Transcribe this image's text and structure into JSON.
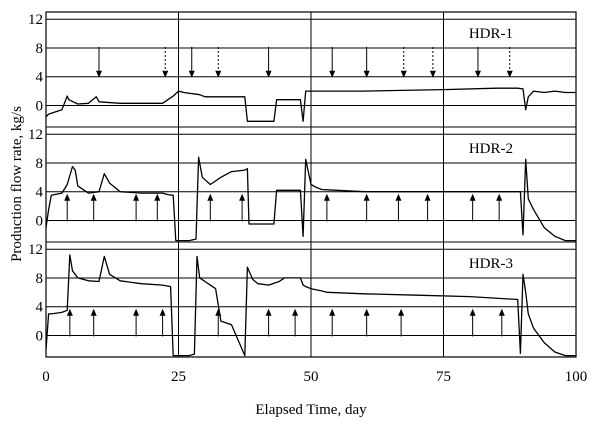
{
  "chart_data": {
    "type": "line",
    "xlabel": "Elapsed Time, day",
    "ylabel": "Production flow rate, kg/s",
    "xlim": [
      0,
      100
    ],
    "x_ticks": [
      "0",
      "25",
      "50",
      "75",
      "100"
    ],
    "x_tick_values": [
      0,
      25,
      50,
      75,
      100
    ],
    "grid": "on",
    "panels": [
      {
        "name": "HDR-1",
        "ylim": [
          -3,
          13
        ],
        "y_ticks": [
          "12",
          "8",
          "4",
          "0"
        ],
        "y_tick_values": [
          12,
          8,
          4,
          0
        ],
        "x": [
          0,
          0.5,
          3,
          4,
          4.3,
          6,
          8,
          9.5,
          10,
          14,
          22,
          23,
          24,
          25,
          26,
          29,
          30,
          33,
          36,
          37.5,
          38,
          38.5,
          40,
          42,
          43,
          43.5,
          44,
          46,
          48,
          48.5,
          49,
          60,
          75,
          85,
          89,
          90,
          90.5,
          91,
          92,
          94,
          96,
          98,
          100
        ],
        "y": [
          -1.6,
          -1.2,
          -0.6,
          1.3,
          0.8,
          0.2,
          0.3,
          1.2,
          0.5,
          0.3,
          0.3,
          0.8,
          1.3,
          2.0,
          1.8,
          1.5,
          1.2,
          1.2,
          1.2,
          1.2,
          -2.2,
          -2.2,
          -2.2,
          -2.2,
          -2.2,
          0.8,
          0.8,
          0.8,
          0.8,
          -2.2,
          2.0,
          2.0,
          2.2,
          2.4,
          2.4,
          2.3,
          -0.6,
          1.2,
          2.0,
          1.8,
          2.0,
          1.8,
          1.8
        ],
        "arrows": [
          {
            "x": 10,
            "direction": "down",
            "style": "solid"
          },
          {
            "x": 22.5,
            "direction": "down",
            "style": "dotted"
          },
          {
            "x": 27.5,
            "direction": "down",
            "style": "solid"
          },
          {
            "x": 32.5,
            "direction": "down",
            "style": "dotted"
          },
          {
            "x": 42,
            "direction": "down",
            "style": "solid"
          },
          {
            "x": 54,
            "direction": "down",
            "style": "solid"
          },
          {
            "x": 60.5,
            "direction": "down",
            "style": "solid"
          },
          {
            "x": 67.5,
            "direction": "down",
            "style": "dotted"
          },
          {
            "x": 73,
            "direction": "down",
            "style": "dotted"
          },
          {
            "x": 81.5,
            "direction": "down",
            "style": "solid"
          },
          {
            "x": 87.5,
            "direction": "down",
            "style": "dotted"
          }
        ]
      },
      {
        "name": "HDR-2",
        "ylim": [
          -3,
          13
        ],
        "y_ticks": [
          "12",
          "8",
          "4",
          "0"
        ],
        "y_tick_values": [
          12,
          8,
          4,
          0
        ],
        "x": [
          0,
          0.5,
          1,
          3,
          4,
          5,
          5.5,
          6,
          8,
          10,
          11,
          12,
          14,
          18,
          20,
          22,
          23,
          24,
          24.5,
          25,
          27,
          28.3,
          28.8,
          29.5,
          31,
          33,
          35,
          37.5,
          38,
          38.3,
          40,
          42,
          43,
          43.5,
          46,
          48,
          48.5,
          49,
          50,
          51,
          52,
          55,
          60,
          70,
          80,
          85,
          89.5,
          90,
          90.5,
          91,
          92,
          94,
          96,
          98,
          100
        ],
        "y": [
          -1.0,
          1.5,
          3.5,
          3.8,
          5.0,
          7.5,
          7.0,
          4.8,
          3.8,
          4.0,
          6.5,
          5.2,
          4.0,
          3.8,
          3.8,
          3.8,
          3.6,
          3.5,
          -2.8,
          -2.8,
          -2.8,
          -2.6,
          8.8,
          6.0,
          5.0,
          6.0,
          6.8,
          7.0,
          7.2,
          -0.5,
          -0.5,
          -0.5,
          -0.5,
          4.2,
          4.2,
          4.2,
          -2.2,
          8.5,
          5.0,
          4.6,
          4.3,
          4.2,
          4.0,
          4.0,
          4.0,
          4.0,
          4.0,
          -2.0,
          8.5,
          3.0,
          1.5,
          -1.0,
          -2.2,
          -2.8,
          -2.8
        ],
        "arrows": [
          {
            "x": 4,
            "direction": "up",
            "style": "solid"
          },
          {
            "x": 9,
            "direction": "up",
            "style": "solid"
          },
          {
            "x": 17,
            "direction": "up",
            "style": "solid"
          },
          {
            "x": 21,
            "direction": "up",
            "style": "solid"
          },
          {
            "x": 31,
            "direction": "up",
            "style": "solid"
          },
          {
            "x": 37,
            "direction": "up",
            "style": "solid"
          },
          {
            "x": 53,
            "direction": "up",
            "style": "solid"
          },
          {
            "x": 60.5,
            "direction": "up",
            "style": "solid"
          },
          {
            "x": 66.5,
            "direction": "up",
            "style": "solid"
          },
          {
            "x": 72,
            "direction": "up",
            "style": "solid"
          },
          {
            "x": 80.5,
            "direction": "up",
            "style": "solid"
          },
          {
            "x": 85.5,
            "direction": "up",
            "style": "solid"
          }
        ]
      },
      {
        "name": "HDR-3",
        "ylim": [
          -3,
          13
        ],
        "y_ticks": [
          "12",
          "8",
          "4",
          "0"
        ],
        "y_tick_values": [
          12,
          8,
          4,
          0
        ],
        "x": [
          0,
          0.5,
          1,
          3,
          4,
          4.5,
          5,
          6,
          8,
          10,
          11,
          12,
          14,
          18,
          22,
          23.5,
          24,
          25,
          27,
          28,
          28.5,
          29,
          30,
          31,
          32,
          33,
          35,
          37.5,
          38,
          39,
          40,
          42,
          44,
          45,
          46,
          48,
          48.5,
          49,
          50,
          52,
          53,
          60,
          70,
          80,
          89,
          89.5,
          90,
          90.5,
          91,
          92,
          94,
          96,
          98,
          100
        ],
        "y": [
          -2.0,
          3.0,
          3.0,
          3.2,
          3.5,
          11.2,
          9.0,
          8.0,
          7.6,
          7.5,
          11.0,
          8.5,
          7.6,
          7.2,
          7.0,
          6.8,
          -2.8,
          -2.8,
          -2.8,
          -2.6,
          11.0,
          8.0,
          7.5,
          7.0,
          6.5,
          2.0,
          1.5,
          -2.8,
          9.5,
          7.8,
          7.2,
          7.0,
          7.5,
          8.0,
          8.0,
          8.0,
          7.0,
          6.8,
          6.5,
          6.2,
          6.0,
          5.8,
          5.6,
          5.4,
          5.0,
          -2.5,
          8.5,
          6.0,
          3.0,
          1.0,
          -1.0,
          -2.3,
          -2.8,
          -2.8
        ],
        "arrows": [
          {
            "x": 4.5,
            "direction": "up",
            "style": "solid"
          },
          {
            "x": 9,
            "direction": "up",
            "style": "solid"
          },
          {
            "x": 17,
            "direction": "up",
            "style": "solid"
          },
          {
            "x": 22,
            "direction": "up",
            "style": "solid"
          },
          {
            "x": 32.5,
            "direction": "up",
            "style": "solid"
          },
          {
            "x": 42,
            "direction": "up",
            "style": "solid"
          },
          {
            "x": 47,
            "direction": "up",
            "style": "solid"
          },
          {
            "x": 54,
            "direction": "up",
            "style": "solid"
          },
          {
            "x": 60.5,
            "direction": "up",
            "style": "solid"
          },
          {
            "x": 67,
            "direction": "up",
            "style": "solid"
          },
          {
            "x": 80.5,
            "direction": "up",
            "style": "solid"
          },
          {
            "x": 86,
            "direction": "up",
            "style": "solid"
          }
        ]
      }
    ]
  }
}
